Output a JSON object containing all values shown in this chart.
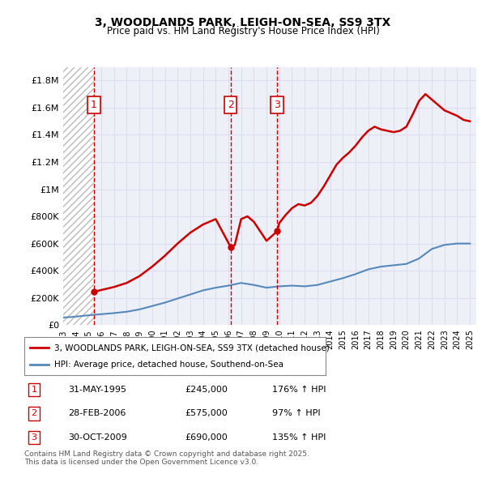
{
  "title1": "3, WOODLANDS PARK, LEIGH-ON-SEA, SS9 3TX",
  "title2": "Price paid vs. HM Land Registry's House Price Index (HPI)",
  "ylabel": "",
  "xlabel": "",
  "xlim": [
    1993.0,
    2025.5
  ],
  "ylim": [
    0,
    1900000
  ],
  "yticks": [
    0,
    200000,
    400000,
    600000,
    800000,
    1000000,
    1200000,
    1400000,
    1600000,
    1800000
  ],
  "ytick_labels": [
    "£0",
    "£200K",
    "£400K",
    "£600K",
    "£800K",
    "£1M",
    "£1.2M",
    "£1.4M",
    "£1.6M",
    "£1.8M"
  ],
  "xticks": [
    1993,
    1994,
    1995,
    1996,
    1997,
    1998,
    1999,
    2000,
    2001,
    2002,
    2003,
    2004,
    2005,
    2006,
    2007,
    2008,
    2009,
    2010,
    2011,
    2012,
    2013,
    2014,
    2015,
    2016,
    2017,
    2018,
    2019,
    2020,
    2021,
    2022,
    2023,
    2024,
    2025
  ],
  "transactions": [
    {
      "num": 1,
      "date": "31-MAY-1995",
      "year": 1995.42,
      "price": 245000,
      "hpi_pct": "176%",
      "arrow": "↑"
    },
    {
      "num": 2,
      "date": "28-FEB-2006",
      "year": 2006.17,
      "price": 575000,
      "hpi_pct": "97%",
      "arrow": "↑"
    },
    {
      "num": 3,
      "date": "30-OCT-2009",
      "year": 2009.83,
      "price": 690000,
      "hpi_pct": "135%",
      "arrow": "↑"
    }
  ],
  "property_color": "#cc0000",
  "hpi_color": "#6699cc",
  "hpi_line_color": "#5588bb",
  "hatch_color": "#cccccc",
  "grid_color": "#ddddee",
  "bg_color": "#eef0f8",
  "legend_label1": "3, WOODLANDS PARK, LEIGH-ON-SEA, SS9 3TX (detached house)",
  "legend_label2": "HPI: Average price, detached house, Southend-on-Sea",
  "footnote": "Contains HM Land Registry data © Crown copyright and database right 2025.\nThis data is licensed under the Open Government Licence v3.0.",
  "property_x": [
    1995.42,
    1996,
    1997,
    1998,
    1999,
    2000,
    2001,
    2002,
    2003,
    2004,
    2005,
    2006.17,
    2006.5,
    2007,
    2007.5,
    2008,
    2008.5,
    2009,
    2009.83,
    2010,
    2010.5,
    2011,
    2011.5,
    2012,
    2012.5,
    2013,
    2013.5,
    2014,
    2014.5,
    2015,
    2015.5,
    2016,
    2016.5,
    2017,
    2017.5,
    2018,
    2018.5,
    2019,
    2019.5,
    2020,
    2020.5,
    2021,
    2021.5,
    2022,
    2022.5,
    2023,
    2023.5,
    2024,
    2024.5,
    2025
  ],
  "property_y": [
    245000,
    258000,
    280000,
    310000,
    360000,
    430000,
    510000,
    600000,
    680000,
    740000,
    780000,
    575000,
    590000,
    780000,
    800000,
    760000,
    690000,
    620000,
    690000,
    750000,
    810000,
    860000,
    890000,
    880000,
    900000,
    950000,
    1020000,
    1100000,
    1180000,
    1230000,
    1270000,
    1320000,
    1380000,
    1430000,
    1460000,
    1440000,
    1430000,
    1420000,
    1430000,
    1460000,
    1550000,
    1650000,
    1700000,
    1660000,
    1620000,
    1580000,
    1560000,
    1540000,
    1510000,
    1500000
  ],
  "hpi_x": [
    1993,
    1994,
    1995,
    1996,
    1997,
    1998,
    1999,
    2000,
    2001,
    2002,
    2003,
    2004,
    2005,
    2006,
    2007,
    2008,
    2009,
    2010,
    2011,
    2012,
    2013,
    2014,
    2015,
    2016,
    2017,
    2018,
    2019,
    2020,
    2021,
    2022,
    2023,
    2024,
    2025
  ],
  "hpi_y": [
    55000,
    62000,
    72000,
    80000,
    88000,
    98000,
    115000,
    140000,
    165000,
    195000,
    225000,
    255000,
    275000,
    290000,
    310000,
    295000,
    275000,
    285000,
    290000,
    285000,
    295000,
    320000,
    345000,
    375000,
    410000,
    430000,
    440000,
    450000,
    490000,
    560000,
    590000,
    600000,
    600000
  ]
}
